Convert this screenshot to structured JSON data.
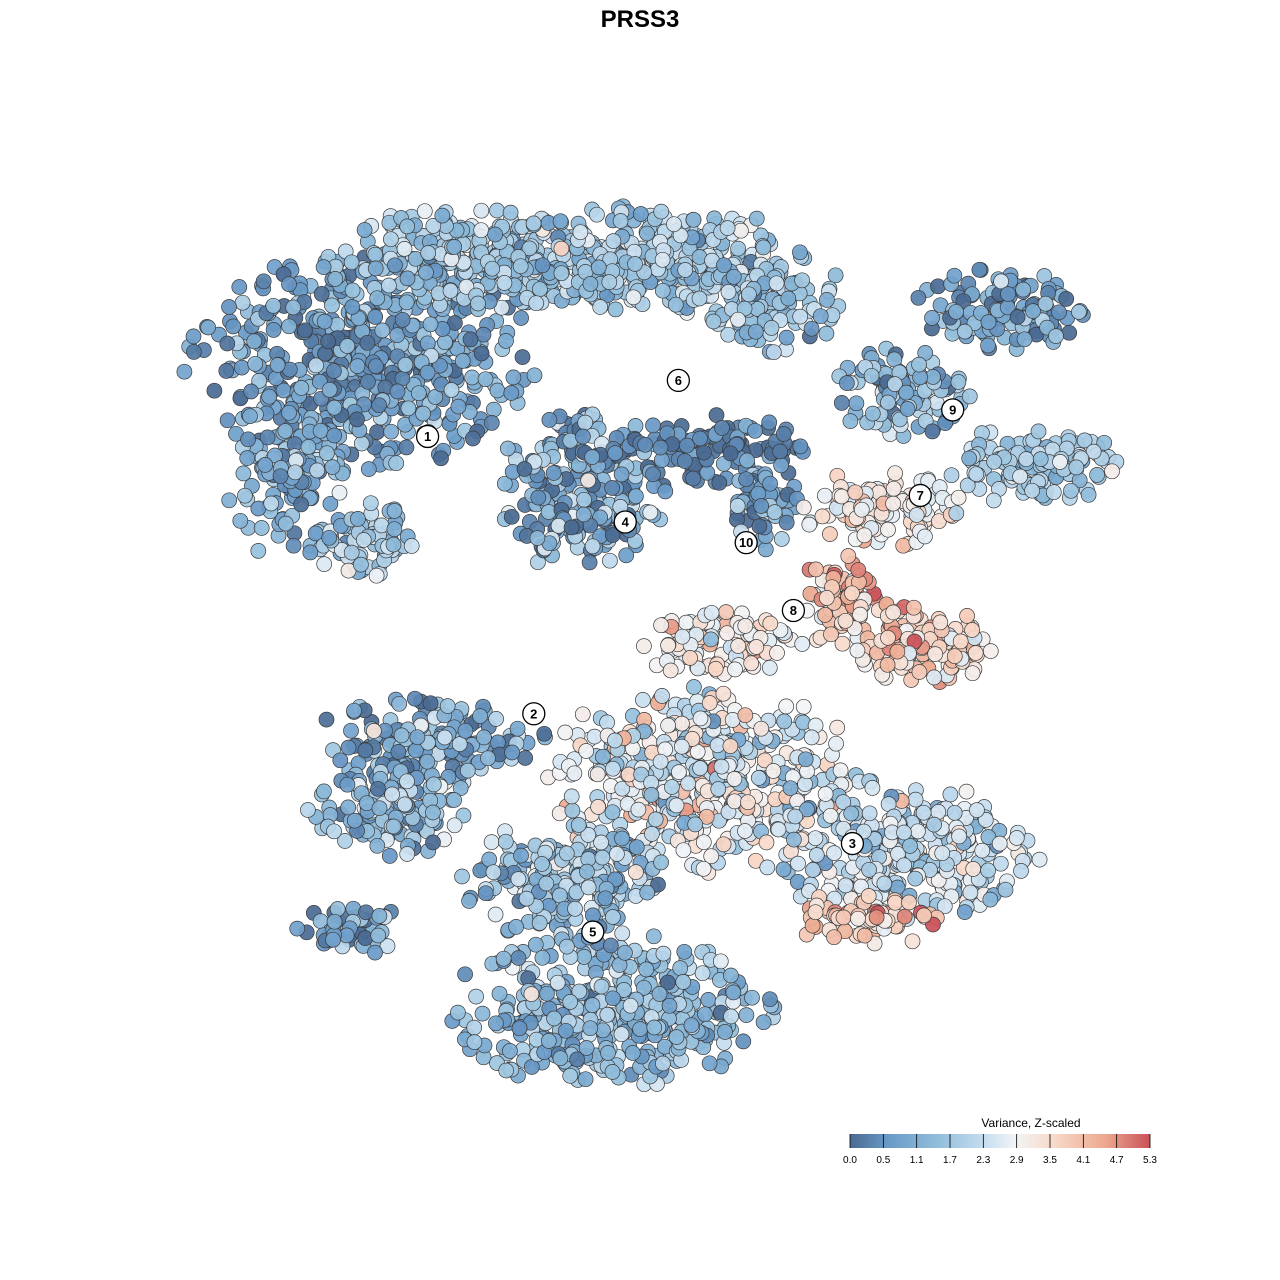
{
  "chart_data": {
    "type": "scatter",
    "title": "PRSS3",
    "legend": {
      "title": "Variance, Z-scaled",
      "placement": "bottom-right",
      "ticks": [
        "0.0",
        "0.5",
        "1.1",
        "1.7",
        "2.3",
        "2.9",
        "3.5",
        "4.1",
        "4.7",
        "5.3"
      ],
      "range": [
        0.0,
        5.3
      ]
    },
    "colors": {
      "scale": [
        "#4a6a92",
        "#6a9bc9",
        "#93bfdc",
        "#c7def0",
        "#f2f4f6",
        "#f8d9c9",
        "#eda98f",
        "#c95058"
      ],
      "point_stroke": "#3a3a3a"
    },
    "clusters": [
      {
        "label": "1",
        "x": -7.2,
        "y": 6.9,
        "mean": 1.0
      },
      {
        "label": "6",
        "x": 1.3,
        "y": 8.8,
        "mean": 1.8
      },
      {
        "label": "9",
        "x": 10.6,
        "y": 7.8,
        "mean": 1.0
      },
      {
        "label": "7",
        "x": 9.5,
        "y": 4.9,
        "mean": 1.8
      },
      {
        "label": "4",
        "x": -0.5,
        "y": 4.0,
        "mean": 1.0
      },
      {
        "label": "10",
        "x": 3.6,
        "y": 3.3,
        "mean": 0.8
      },
      {
        "label": "8",
        "x": 5.2,
        "y": 1.0,
        "mean": 3.8
      },
      {
        "label": "2",
        "x": -3.6,
        "y": -2.5,
        "mean": 1.2
      },
      {
        "label": "3",
        "x": 7.2,
        "y": -6.9,
        "mean": 2.4
      },
      {
        "label": "5",
        "x": -1.6,
        "y": -9.9,
        "mean": 1.5
      }
    ]
  }
}
